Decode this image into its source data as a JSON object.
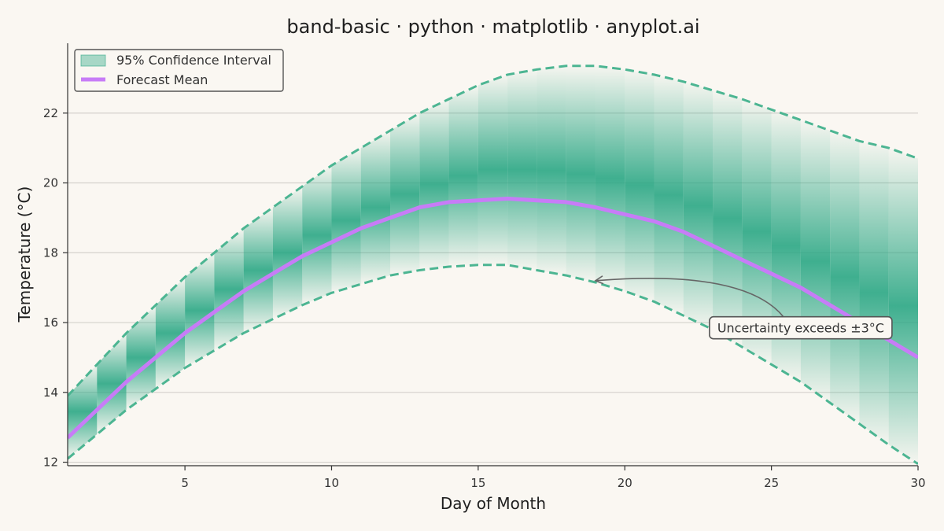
{
  "chart_data": {
    "type": "area",
    "title": "band-basic · python · matplotlib · anyplot.ai",
    "xlabel": "Day of Month",
    "ylabel": "Temperature (°C)",
    "xlim": [
      1,
      30
    ],
    "ylim": [
      11.9,
      24.0
    ],
    "xticks": [
      5,
      10,
      15,
      20,
      25,
      30
    ],
    "yticks": [
      12,
      14,
      16,
      18,
      20,
      22
    ],
    "grid": "horizontal",
    "legend_position": "top-left",
    "legend": {
      "band_label": "95% Confidence Interval",
      "mean_label": "Forecast Mean"
    },
    "colors": {
      "band": "#2aa784",
      "band_edge": "#4cb592",
      "mean": "#c77cf7",
      "grid": "#d4d1cc",
      "axis": "#333333"
    },
    "x": [
      1,
      2,
      3,
      4,
      5,
      6,
      7,
      8,
      9,
      10,
      11,
      12,
      13,
      14,
      15,
      16,
      17,
      18,
      19,
      20,
      21,
      22,
      23,
      24,
      25,
      26,
      27,
      28,
      29,
      30
    ],
    "series": [
      {
        "name": "Forecast Mean",
        "values": [
          12.7,
          13.5,
          14.3,
          15.0,
          15.7,
          16.3,
          16.9,
          17.4,
          17.9,
          18.3,
          18.7,
          19.0,
          19.3,
          19.45,
          19.5,
          19.55,
          19.5,
          19.45,
          19.3,
          19.1,
          18.9,
          18.6,
          18.2,
          17.8,
          17.4,
          17.0,
          16.5,
          16.0,
          15.5,
          15.0
        ]
      },
      {
        "name": "95% Confidence Interval",
        "lower": [
          12.1,
          12.8,
          13.5,
          14.1,
          14.7,
          15.2,
          15.7,
          16.1,
          16.5,
          16.85,
          17.1,
          17.35,
          17.5,
          17.6,
          17.65,
          17.65,
          17.5,
          17.35,
          17.15,
          16.9,
          16.6,
          16.2,
          15.8,
          15.3,
          14.8,
          14.3,
          13.7,
          13.1,
          12.5,
          11.95
        ],
        "upper": [
          13.9,
          14.8,
          15.7,
          16.5,
          17.3,
          18.0,
          18.7,
          19.3,
          19.9,
          20.5,
          21.0,
          21.5,
          22.0,
          22.4,
          22.8,
          23.1,
          23.25,
          23.35,
          23.35,
          23.25,
          23.1,
          22.9,
          22.65,
          22.4,
          22.1,
          21.8,
          21.5,
          21.2,
          21.0,
          20.7
        ]
      }
    ],
    "annotation": {
      "text": "Uncertainty exceeds ±3°C",
      "target": {
        "x": 19,
        "y": 17.2
      },
      "label_at": {
        "x": 26,
        "y": 15.85
      }
    }
  }
}
